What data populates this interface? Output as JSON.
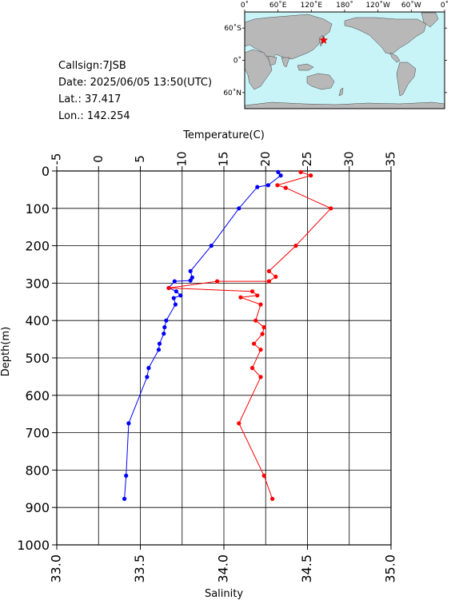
{
  "info": {
    "callsign": "Callsign:7JSB",
    "date": "Date:  2025/06/05 13:50(UTC)",
    "lat": "Lat.:  37.417",
    "lon": "Lon.:  142.254"
  },
  "map": {
    "lon_ticks": [
      "0˚",
      "60˚E",
      "120˚E",
      "180˚",
      "120˚W",
      "60˚W",
      "0˚"
    ],
    "lat_ticks": [
      "60˚N",
      "0˚",
      "60˚S"
    ],
    "ocean_color": "#c8f4f8",
    "land_color": "#b8b8b8",
    "marker_color": "#ff0000",
    "station": {
      "lat": 37.417,
      "lon": 142.254
    }
  },
  "chart_data": {
    "type": "line",
    "title": "",
    "temperature_axis": {
      "label": "Temperature(C)",
      "range": [
        -5,
        35
      ],
      "ticks": [
        "-5",
        "0",
        "5",
        "10",
        "15",
        "20",
        "25",
        "30",
        "35"
      ]
    },
    "salinity_axis": {
      "label": "Salinity",
      "range": [
        33.0,
        35.0
      ],
      "ticks": [
        "33.0",
        "33.5",
        "34.0",
        "34.5",
        "35.0"
      ]
    },
    "depth_axis": {
      "label": "Depth(m)",
      "range": [
        0,
        1000
      ],
      "inverted": true,
      "ticks": [
        "0",
        "100",
        "200",
        "300",
        "400",
        "500",
        "600",
        "700",
        "800",
        "900",
        "1000"
      ]
    },
    "grid": true,
    "series": [
      {
        "name": "Temperature",
        "color": "#0000ff",
        "axis": "temperature",
        "points": [
          [
            21.5,
            3
          ],
          [
            21.8,
            12
          ],
          [
            20.3,
            38
          ],
          [
            19.0,
            43
          ],
          [
            16.8,
            100
          ],
          [
            13.5,
            200
          ],
          [
            11.0,
            268
          ],
          [
            11.2,
            285
          ],
          [
            11.0,
            293
          ],
          [
            9.1,
            295
          ],
          [
            8.4,
            313
          ],
          [
            9.3,
            322
          ],
          [
            9.8,
            333
          ],
          [
            9.0,
            340
          ],
          [
            9.2,
            357
          ],
          [
            8.1,
            400
          ],
          [
            7.9,
            418
          ],
          [
            7.8,
            435
          ],
          [
            7.3,
            462
          ],
          [
            7.2,
            478
          ],
          [
            6.0,
            527
          ],
          [
            5.8,
            551
          ],
          [
            3.6,
            675
          ],
          [
            3.3,
            815
          ],
          [
            3.1,
            877
          ]
        ]
      },
      {
        "name": "Salinity",
        "color": "#ff0000",
        "axis": "salinity",
        "points": [
          [
            34.46,
            3
          ],
          [
            34.52,
            12
          ],
          [
            34.32,
            38
          ],
          [
            34.37,
            45
          ],
          [
            34.64,
            100
          ],
          [
            34.43,
            200
          ],
          [
            34.27,
            268
          ],
          [
            34.31,
            283
          ],
          [
            34.27,
            295
          ],
          [
            33.96,
            295
          ],
          [
            33.67,
            313
          ],
          [
            34.17,
            322
          ],
          [
            34.2,
            333
          ],
          [
            34.1,
            338
          ],
          [
            34.22,
            357
          ],
          [
            34.19,
            400
          ],
          [
            34.24,
            418
          ],
          [
            34.23,
            436
          ],
          [
            34.18,
            462
          ],
          [
            34.22,
            478
          ],
          [
            34.17,
            527
          ],
          [
            34.22,
            551
          ],
          [
            34.09,
            675
          ],
          [
            34.24,
            815
          ],
          [
            34.29,
            877
          ]
        ]
      }
    ]
  }
}
